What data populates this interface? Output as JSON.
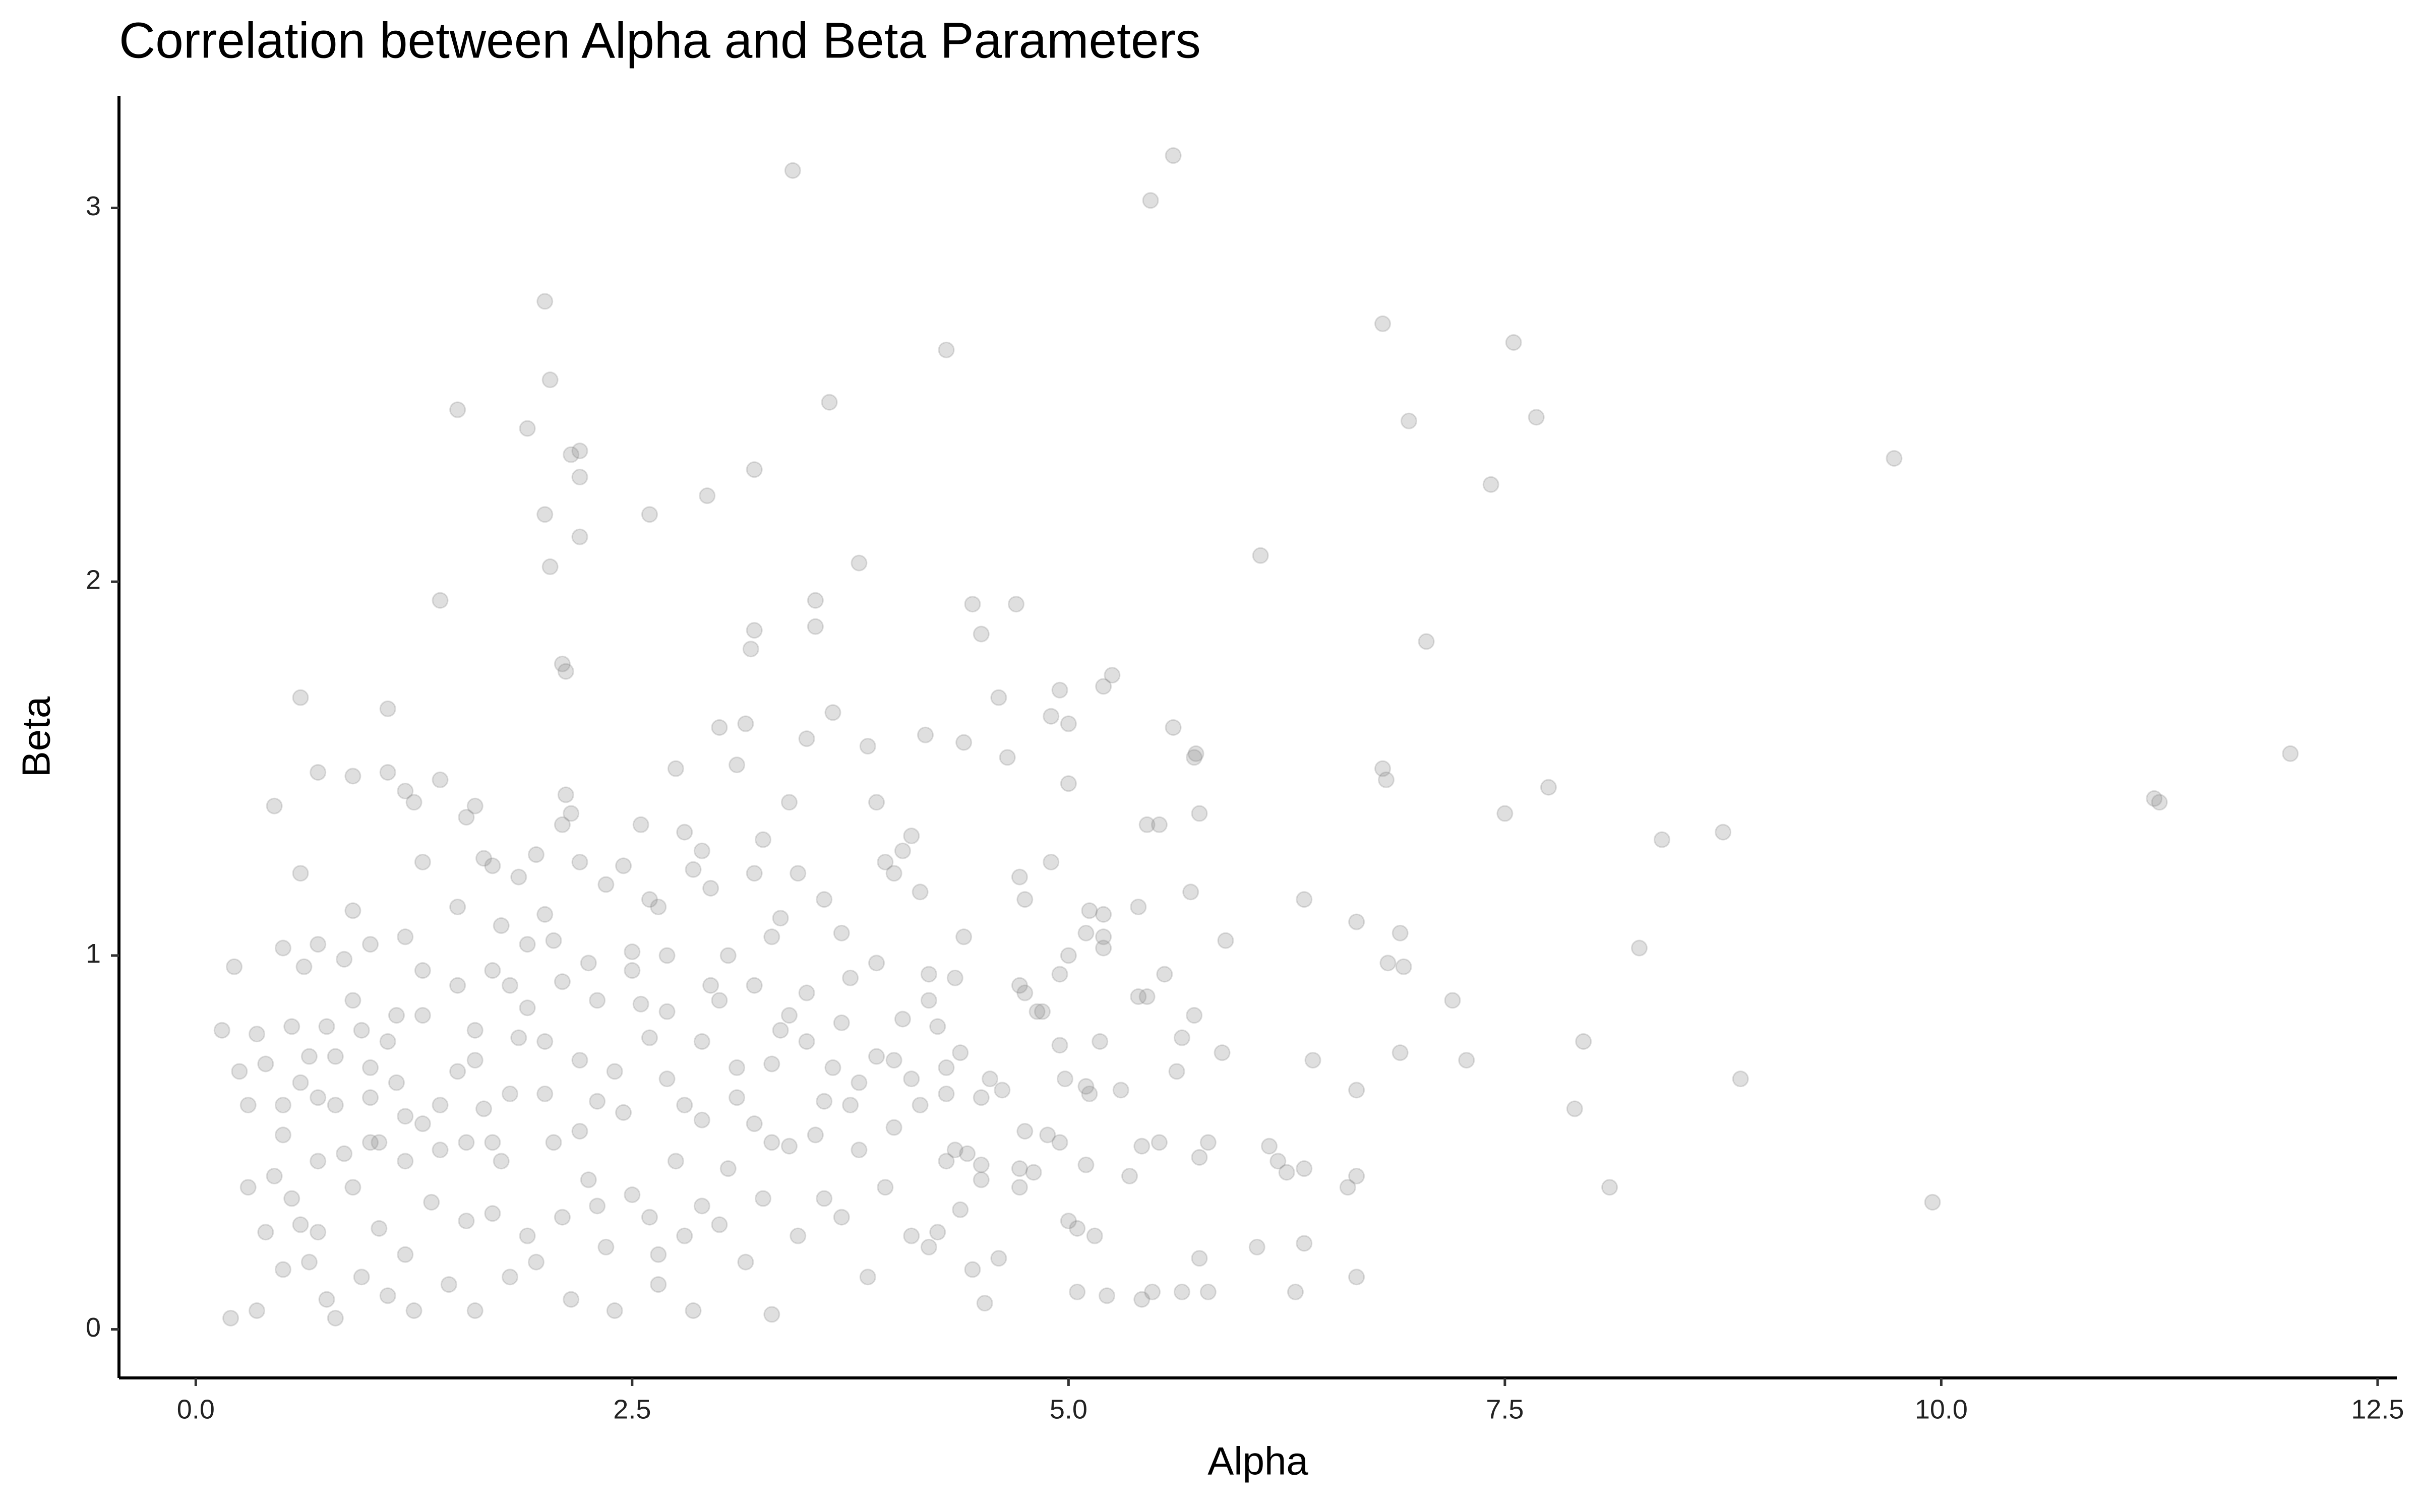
{
  "chart_data": {
    "type": "scatter",
    "title": "Correlation between Alpha and Beta Parameters",
    "x_label": "Alpha",
    "y_label": "Beta",
    "color": "#7f7f7f",
    "opacity": 0.25,
    "xlim": [
      -0.44,
      12.61
    ],
    "ylim": [
      -0.13,
      3.3
    ],
    "xticks": [
      {
        "value": 0,
        "label": "0.0"
      },
      2.5,
      {
        "value": 5,
        "label": "5.0"
      },
      7.5,
      {
        "value": 10,
        "label": "10.0"
      },
      12.5
    ],
    "yticks": [
      0,
      1,
      2,
      3
    ],
    "x": [
      0.15,
      0.2,
      0.22,
      0.6,
      1.1,
      1.4,
      1.5,
      1.9,
      2.0,
      2.03,
      2.0,
      2.03,
      2.15,
      2.2,
      2.2,
      2.2,
      2.1,
      2.12,
      2.6,
      2.93,
      3.2,
      3.42,
      3.63,
      3.8,
      3.55,
      3.55,
      3.2,
      3.18,
      4.3,
      4.45,
      4.7,
      4.5,
      5.47,
      5.6,
      6.8,
      6.95,
      7.55,
      7.68,
      7.42,
      6.1,
      7.05,
      9.73,
      12.0,
      11.22,
      11.25,
      8.4,
      8.75,
      8.27,
      8.85,
      7.95,
      7.9,
      8.1,
      9.95,
      7.75,
      7.5,
      6.8,
      6.82,
      6.9,
      6.83,
      6.92,
      6.65,
      6.9,
      7.2,
      7.28,
      6.65,
      6.65,
      6.6,
      6.65,
      6.4,
      6.35,
      6.35,
      6.25,
      6.2,
      6.15,
      6.35,
      6.3,
      6.08,
      5.9,
      5.88,
      5.8,
      5.75,
      5.75,
      5.8,
      5.65,
      5.6,
      5.72,
      5.73,
      5.75,
      5.7,
      5.72,
      5.65,
      5.62,
      5.55,
      5.45,
      5.52,
      5.4,
      5.4,
      5.45,
      5.35,
      5.42,
      5.52,
      5.48,
      5.42,
      5.3,
      5.2,
      5.25,
      5.2,
      5.2,
      5.2,
      5.12,
      5.1,
      5.1,
      5.12,
      5.18,
      5.22,
      5.15,
      5.05,
      5.05,
      5.0,
      4.95,
      5.0,
      4.9,
      5.0,
      4.9,
      4.95,
      5.0,
      4.95,
      4.98,
      5.1,
      4.95,
      4.88,
      4.82,
      4.85,
      4.75,
      4.72,
      4.72,
      4.75,
      4.8,
      4.72,
      4.72,
      4.75,
      4.65,
      4.6,
      4.62,
      4.55,
      4.5,
      4.5,
      4.5,
      4.52,
      4.6,
      4.45,
      4.4,
      4.4,
      4.35,
      4.38,
      4.35,
      4.3,
      4.3,
      4.25,
      0.25,
      0.3,
      0.35,
      0.4,
      0.45,
      0.5,
      0.5,
      0.55,
      0.6,
      0.62,
      0.65,
      0.7,
      0.7,
      0.7,
      0.75,
      0.8,
      0.85,
      0.9,
      0.9,
      0.95,
      1.0,
      1.0,
      1.05,
      1.1,
      1.15,
      1.2,
      1.2,
      1.25,
      1.3,
      1.3,
      1.4,
      1.5,
      1.55,
      1.6,
      1.6,
      1.65,
      1.7,
      1.75,
      1.8,
      1.85,
      1.9,
      1.95,
      2.0,
      2.05,
      2.1,
      2.12,
      2.15,
      2.2,
      2.25,
      2.35,
      2.45,
      2.5,
      2.55,
      2.6,
      2.65,
      2.7,
      2.75,
      2.8,
      2.85,
      2.9,
      2.95,
      3.0,
      3.05,
      3.1,
      3.15,
      3.2,
      3.25,
      3.3,
      3.35,
      3.4,
      3.45,
      3.5,
      3.6,
      3.65,
      3.7,
      3.75,
      3.85,
      3.9,
      3.95,
      4.0,
      4.05,
      4.1,
      4.15,
      4.18,
      4.2,
      0.3,
      0.35,
      0.4,
      0.45,
      0.5,
      0.55,
      0.6,
      0.65,
      0.7,
      0.75,
      0.8,
      0.85,
      0.9,
      0.95,
      1.0,
      1.05,
      1.1,
      1.15,
      1.2,
      1.25,
      1.3,
      1.35,
      1.4,
      1.45,
      1.5,
      1.55,
      1.6,
      1.65,
      1.7,
      1.75,
      1.8,
      1.85,
      1.9,
      1.95,
      2.0,
      2.05,
      2.1,
      2.15,
      2.2,
      2.25,
      2.3,
      2.35,
      2.4,
      2.45,
      2.5,
      2.55,
      2.6,
      2.65,
      2.7,
      2.75,
      2.8,
      2.85,
      2.9,
      2.95,
      3.0,
      3.05,
      3.1,
      3.15,
      3.2,
      3.25,
      3.3,
      3.35,
      3.4,
      3.45,
      3.5,
      3.55,
      3.6,
      3.65,
      3.7,
      3.75,
      3.8,
      3.85,
      3.9,
      3.95,
      4.0,
      4.05,
      4.1,
      4.15,
      4.2,
      4.25,
      4.3,
      4.38,
      4.42,
      0.5,
      0.6,
      0.8,
      0.9,
      1.0,
      1.1,
      1.2,
      1.3,
      1.4,
      1.5,
      1.6,
      1.7,
      1.8,
      1.9,
      2.0,
      2.1,
      2.2,
      2.3,
      2.4,
      2.5,
      2.6,
      2.7,
      2.8,
      2.9,
      3.0,
      3.1,
      3.2,
      3.3,
      3.4,
      3.5,
      3.6,
      3.7,
      3.8,
      3.9,
      4.0,
      4.1,
      4.2,
      1.7,
      2.3,
      1.2,
      0.7,
      2.9,
      3.3,
      1.55,
      2.65
    ],
    "values": [
      0.8,
      0.03,
      0.97,
      1.69,
      1.66,
      1.95,
      2.46,
      2.41,
      2.75,
      2.54,
      2.18,
      2.04,
      2.34,
      2.35,
      2.28,
      2.12,
      1.78,
      1.76,
      2.18,
      2.23,
      2.3,
      3.1,
      2.48,
      2.05,
      1.95,
      1.88,
      1.87,
      1.82,
      2.62,
      1.94,
      1.94,
      1.86,
      3.02,
      3.14,
      2.69,
      2.43,
      2.64,
      2.44,
      2.26,
      2.07,
      1.84,
      2.33,
      1.54,
      1.42,
      1.41,
      1.31,
      1.33,
      1.02,
      0.67,
      0.77,
      0.59,
      0.38,
      0.34,
      1.45,
      1.38,
      1.5,
      1.47,
      1.06,
      0.98,
      0.97,
      1.09,
      0.74,
      0.88,
      0.72,
      0.64,
      0.41,
      0.38,
      0.14,
      0.72,
      1.15,
      0.43,
      0.42,
      0.45,
      0.49,
      0.23,
      0.1,
      0.22,
      1.04,
      0.74,
      0.5,
      0.46,
      0.19,
      0.1,
      0.1,
      1.61,
      1.53,
      1.54,
      1.38,
      1.17,
      0.84,
      0.78,
      0.69,
      0.95,
      1.35,
      1.35,
      1.13,
      0.89,
      0.89,
      0.41,
      0.49,
      0.5,
      0.1,
      0.08,
      0.64,
      1.72,
      1.75,
      1.11,
      1.05,
      1.02,
      1.12,
      1.06,
      0.65,
      0.63,
      0.77,
      0.09,
      0.25,
      0.1,
      0.27,
      0.29,
      1.71,
      1.62,
      1.64,
      1.46,
      1.25,
      0.95,
      1.0,
      0.76,
      0.67,
      0.44,
      0.5,
      0.52,
      0.85,
      0.85,
      0.9,
      0.92,
      1.21,
      1.15,
      0.42,
      0.43,
      0.38,
      0.53,
      1.53,
      1.69,
      0.64,
      0.67,
      0.62,
      0.4,
      0.44,
      0.07,
      0.19,
      0.16,
      1.57,
      1.05,
      0.94,
      0.74,
      0.48,
      0.7,
      0.63,
      0.26,
      0.69,
      0.6,
      0.79,
      0.71,
      1.4,
      1.02,
      0.6,
      0.81,
      1.22,
      0.97,
      0.73,
      1.49,
      1.03,
      0.62,
      0.81,
      0.6,
      0.99,
      1.48,
      1.12,
      0.8,
      1.03,
      0.7,
      0.5,
      1.49,
      0.84,
      1.05,
      1.44,
      1.41,
      1.25,
      0.96,
      1.47,
      1.13,
      1.37,
      1.4,
      0.8,
      1.26,
      1.24,
      1.08,
      0.92,
      1.21,
      1.03,
      1.27,
      1.11,
      1.04,
      1.35,
      1.43,
      1.38,
      1.25,
      0.98,
      1.19,
      1.24,
      1.01,
      1.35,
      1.15,
      1.13,
      1.0,
      1.5,
      1.33,
      1.23,
      1.28,
      1.18,
      1.61,
      1.0,
      1.51,
      1.62,
      1.22,
      1.31,
      1.05,
      1.1,
      1.41,
      1.22,
      1.58,
      1.15,
      1.65,
      1.06,
      0.94,
      1.56,
      1.41,
      1.25,
      1.22,
      1.28,
      1.32,
      1.17,
      1.59,
      0.95,
      0.38,
      0.05,
      0.26,
      0.41,
      0.16,
      0.35,
      0.28,
      0.18,
      0.26,
      0.08,
      0.03,
      0.47,
      0.38,
      0.14,
      0.5,
      0.27,
      0.09,
      0.66,
      0.2,
      0.05,
      0.55,
      0.34,
      0.48,
      0.12,
      0.69,
      0.29,
      0.05,
      0.59,
      0.31,
      0.45,
      0.14,
      0.78,
      0.25,
      0.18,
      0.63,
      0.5,
      0.3,
      0.08,
      0.72,
      0.4,
      0.61,
      0.22,
      0.05,
      0.58,
      0.36,
      0.87,
      0.3,
      0.12,
      0.67,
      0.45,
      0.25,
      0.05,
      0.56,
      0.92,
      0.28,
      0.43,
      0.7,
      0.18,
      0.55,
      0.35,
      0.04,
      0.8,
      0.49,
      0.25,
      0.9,
      0.52,
      0.35,
      0.7,
      0.3,
      0.6,
      0.48,
      0.14,
      0.73,
      0.38,
      0.54,
      0.83,
      0.25,
      0.6,
      0.22,
      0.81,
      0.45,
      0.32,
      0.47,
      0.52,
      0.66,
      0.73,
      0.88,
      0.62,
      0.77,
      0.57,
      0.84,
      0.6,
      0.92,
      0.72,
      0.96,
      0.63,
      0.86,
      0.77,
      0.93,
      0.53,
      0.88,
      0.69,
      0.96,
      0.78,
      0.85,
      0.6,
      0.77,
      0.88,
      0.62,
      0.92,
      0.71,
      0.84,
      0.77,
      0.61,
      0.82,
      0.66,
      0.98,
      0.72,
      0.67,
      0.88,
      0.5,
      0.33,
      0.45,
      0.45,
      0.33,
      0.5,
      0.5,
      0.2
    ]
  }
}
